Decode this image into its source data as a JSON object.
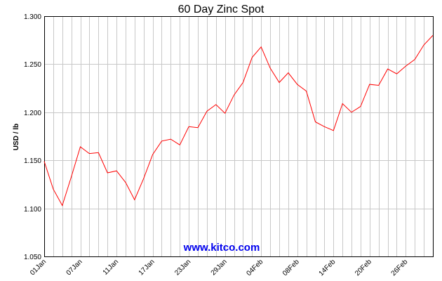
{
  "chart_data": {
    "type": "line",
    "title": "60 Day Zinc Spot",
    "xlabel": "",
    "ylabel": "USD / lb",
    "watermark": "www.kitco.com",
    "line_color": "#ff0000",
    "grid": true,
    "ylim": [
      1.05,
      1.3
    ],
    "yticks": [
      "1.050",
      "1.100",
      "1.150",
      "1.200",
      "1.250",
      "1.300"
    ],
    "ytick_values": [
      1.05,
      1.1,
      1.15,
      1.2,
      1.25,
      1.3
    ],
    "xticks": [
      "01Jan",
      "07Jan",
      "11Jan",
      "17Jan",
      "23Jan",
      "29Jan",
      "04Feb",
      "08Feb",
      "14Feb",
      "20Feb",
      "26Feb"
    ],
    "xtick_index": [
      0,
      4,
      8,
      12,
      16,
      20,
      24,
      28,
      32,
      36,
      40
    ],
    "series": [
      {
        "values": [
          1.149,
          1.12,
          1.103,
          1.133,
          1.164,
          1.157,
          1.158,
          1.137,
          1.139,
          1.127,
          1.109,
          1.131,
          1.156,
          1.17,
          1.172,
          1.166,
          1.185,
          1.184,
          1.201,
          1.208,
          1.199,
          1.218,
          1.231,
          1.257,
          1.268,
          1.246,
          1.231,
          1.241,
          1.229,
          1.222,
          1.19,
          1.185,
          1.181,
          1.209,
          1.2,
          1.206,
          1.229,
          1.228,
          1.245,
          1.24,
          1.248,
          1.255,
          1.27,
          1.28
        ]
      }
    ]
  }
}
